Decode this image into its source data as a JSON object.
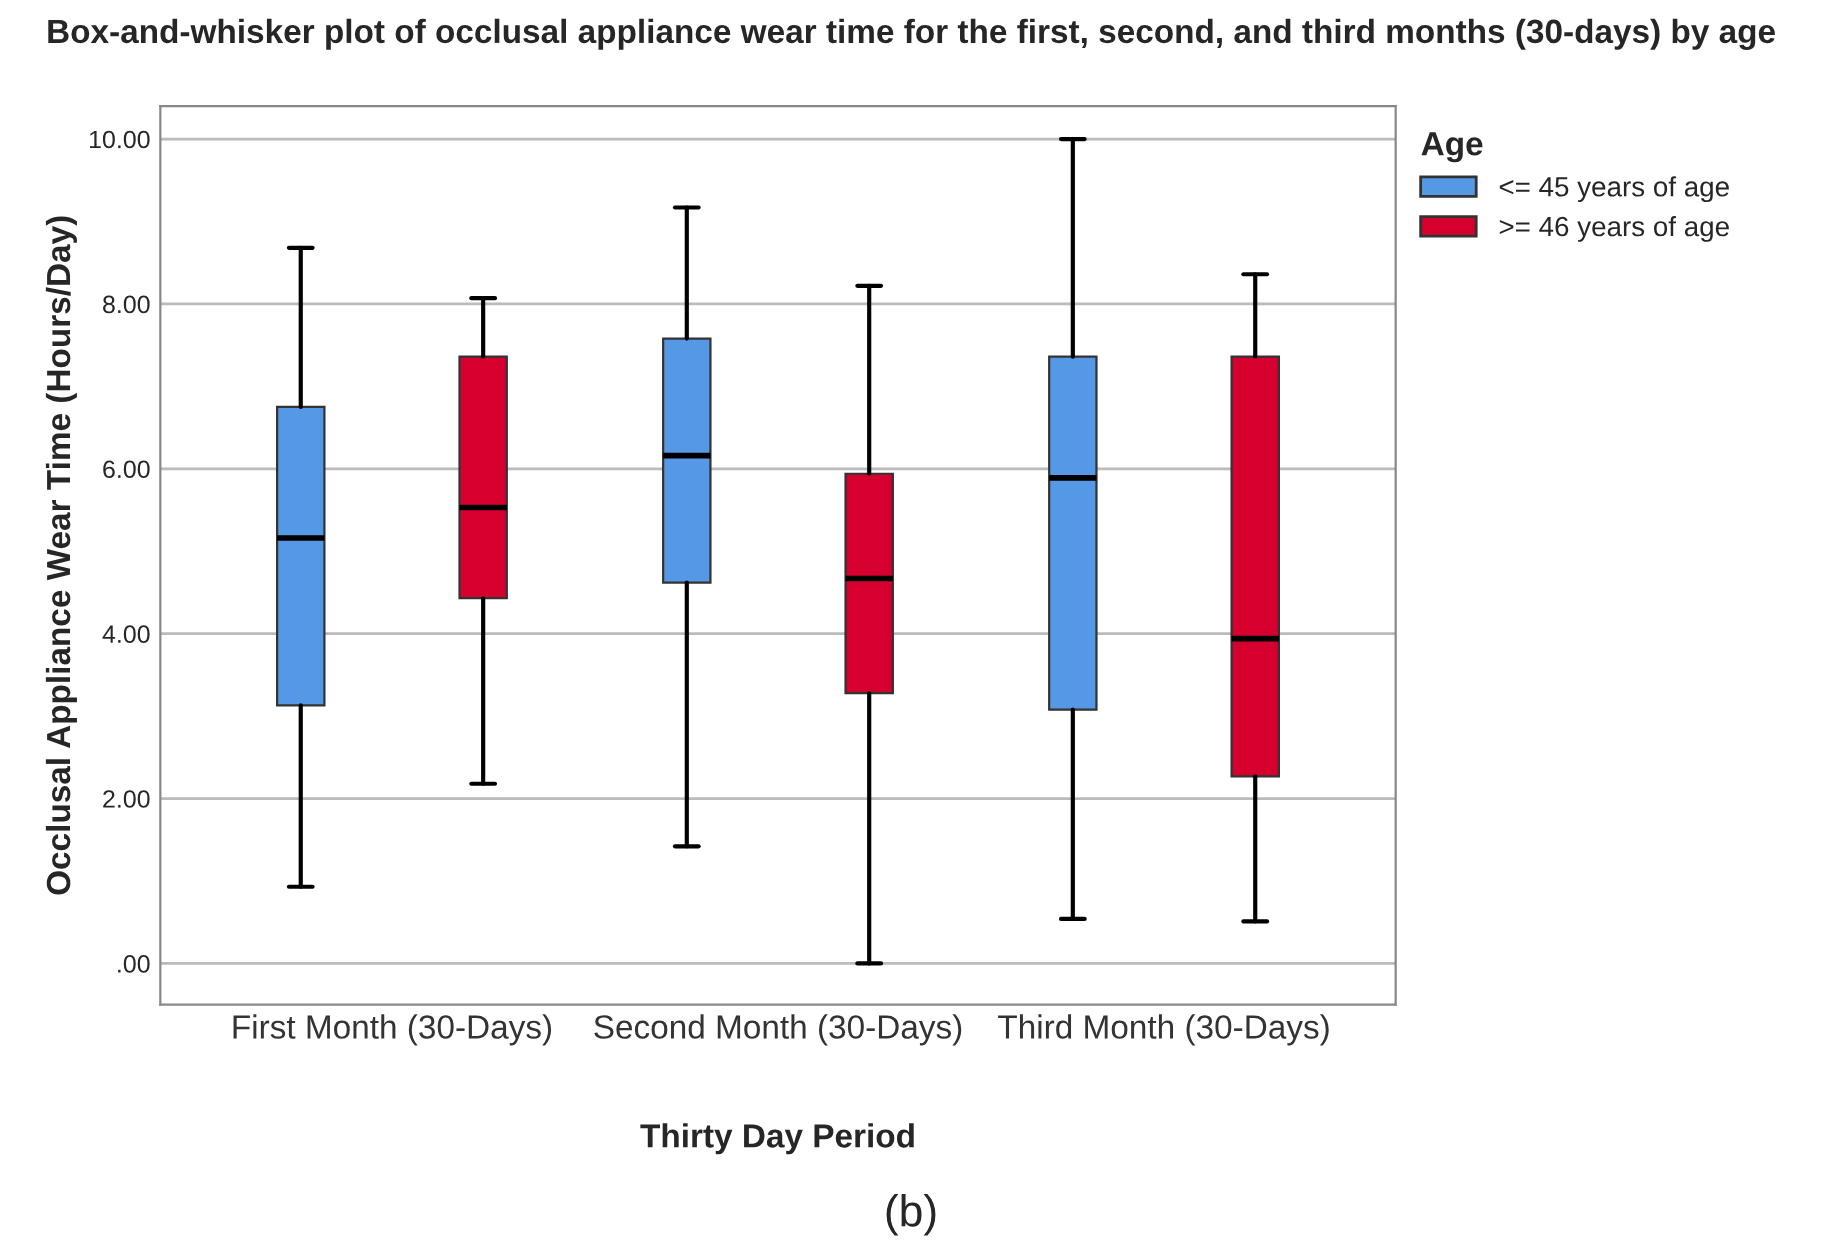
{
  "chart_data": {
    "type": "box",
    "title": "Box-and-whisker plot of occlusal appliance wear time for the first, second, and third months (30-days) by age",
    "xlabel": "Thirty Day Period",
    "ylabel": "Occlusal Appliance Wear Time (Hours/Day)",
    "legend_title": "Age",
    "categories": [
      "First Month (30-Days)",
      "Second Month (30-Days)",
      "Third Month (30-Days)"
    ],
    "series": [
      {
        "name": "<= 45 years of age",
        "color": "#5599e6",
        "boxes": [
          {
            "low": 0.93,
            "q1": 3.13,
            "median": 5.16,
            "q3": 6.75,
            "high": 8.68
          },
          {
            "low": 1.42,
            "q1": 4.62,
            "median": 6.16,
            "q3": 7.58,
            "high": 9.17
          },
          {
            "low": 0.54,
            "q1": 3.08,
            "median": 5.89,
            "q3": 7.36,
            "high": 10.0
          }
        ]
      },
      {
        "name": ">= 46 years of age",
        "color": "#d6002f",
        "boxes": [
          {
            "low": 2.18,
            "q1": 4.43,
            "median": 5.53,
            "q3": 7.36,
            "high": 8.07
          },
          {
            "low": 0.0,
            "q1": 3.28,
            "median": 4.67,
            "q3": 5.94,
            "high": 8.22
          },
          {
            "low": 0.51,
            "q1": 2.27,
            "median": 3.94,
            "q3": 7.36,
            "high": 8.36
          }
        ]
      }
    ],
    "ylim": [
      -0.5,
      10.4
    ],
    "yticks": [
      {
        "value": 0,
        "label": ".00"
      },
      {
        "value": 2,
        "label": "2.00"
      },
      {
        "value": 4,
        "label": "4.00"
      },
      {
        "value": 6,
        "label": "6.00"
      },
      {
        "value": 8,
        "label": "8.00"
      },
      {
        "value": 10,
        "label": "10.00"
      }
    ],
    "grid": "y",
    "legend": "top right",
    "annotations": [
      "(b)"
    ]
  }
}
